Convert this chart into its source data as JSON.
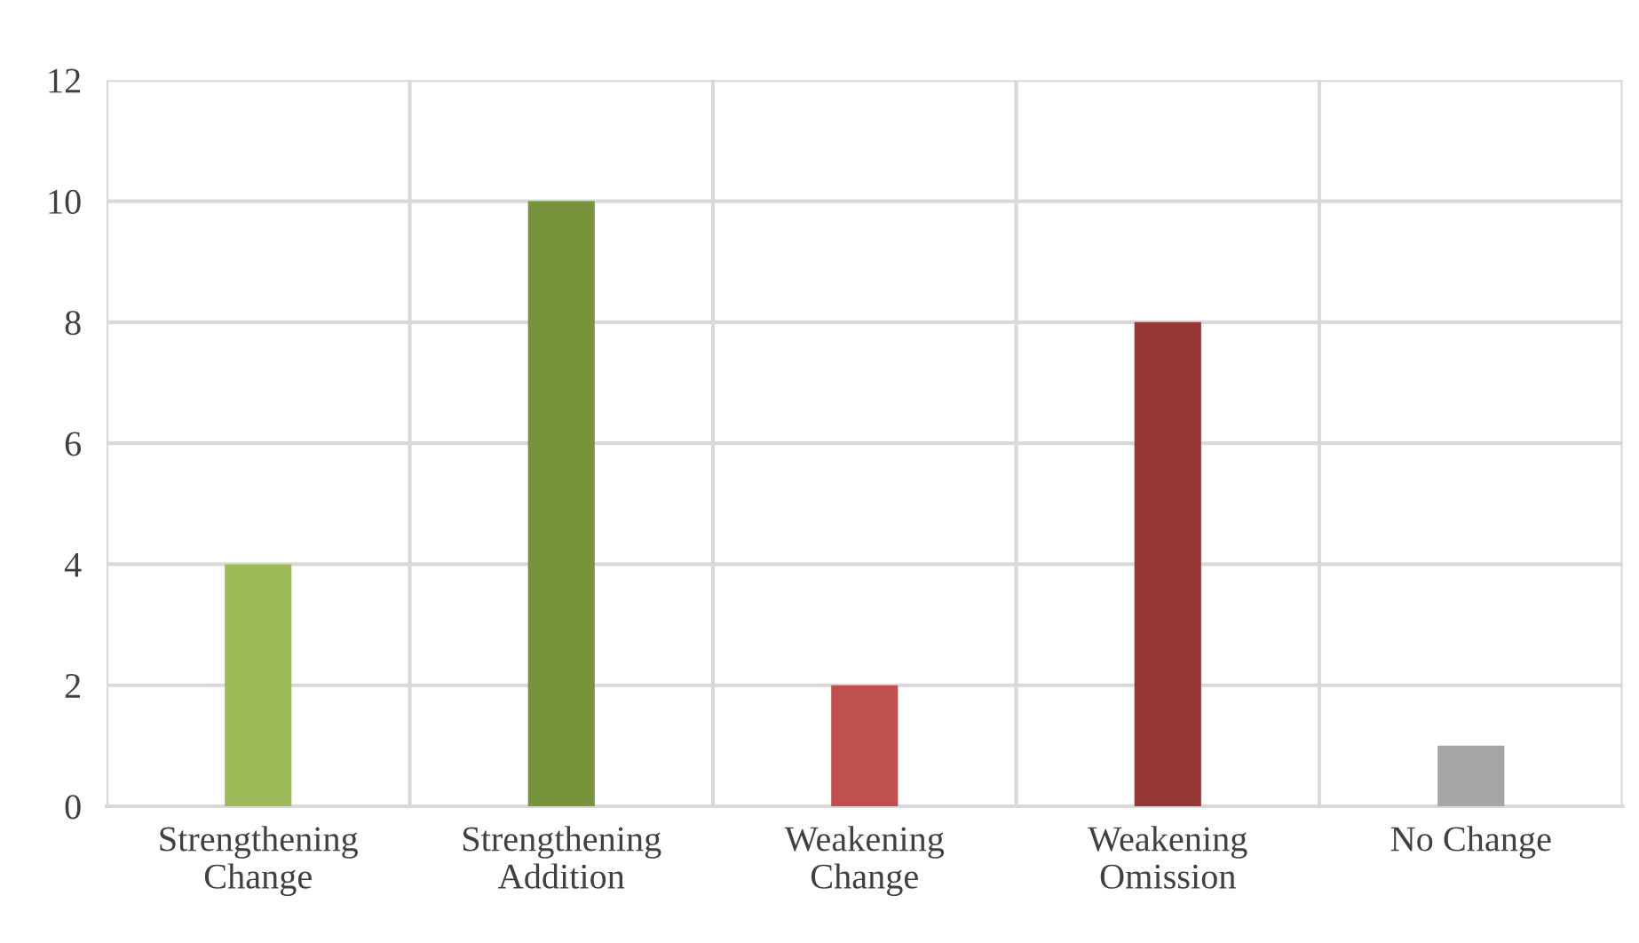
{
  "chart_data": {
    "type": "bar",
    "categories": [
      "Strengthening\nChange",
      "Strengthening\nAddition",
      "Weakening\nChange",
      "Weakening\nOmission",
      "No Change"
    ],
    "values": [
      4,
      10,
      2,
      8,
      1
    ],
    "colors": [
      "#9bbb59",
      "#77933c",
      "#c0504d",
      "#953735",
      "#a5a5a5"
    ],
    "ylim": [
      0,
      12
    ],
    "yticks": [
      0,
      2,
      4,
      6,
      8,
      10,
      12
    ],
    "grid": true
  }
}
